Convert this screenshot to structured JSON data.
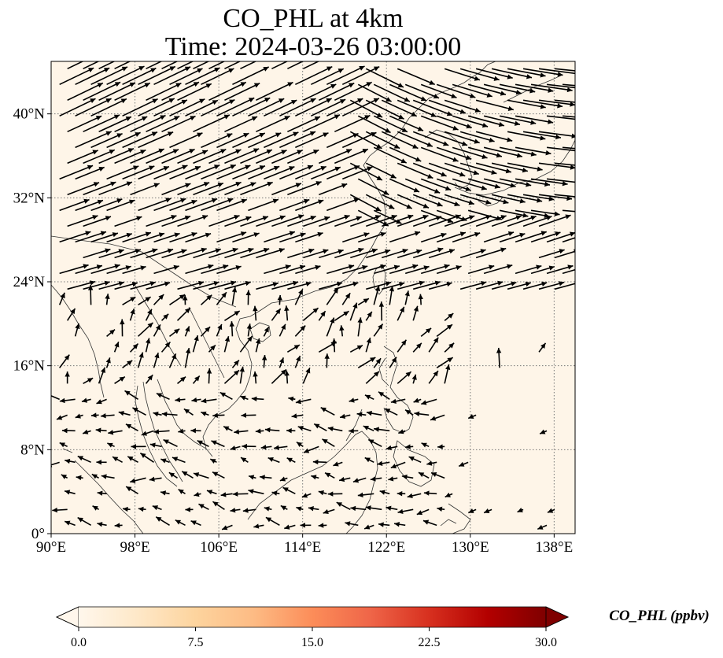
{
  "title_line1": "CO_PHL at 4km",
  "title_line2": "Time: 2024-03-26 03:00:00",
  "map": {
    "lon_range": [
      90,
      140
    ],
    "lat_range": [
      0,
      45
    ],
    "lon_ticks": [
      90,
      98,
      106,
      114,
      122,
      130,
      138
    ],
    "lon_tick_labels": [
      "90°E",
      "98°E",
      "106°E",
      "114°E",
      "122°E",
      "130°E",
      "138°E"
    ],
    "lat_ticks": [
      0,
      8,
      16,
      24,
      32,
      40
    ],
    "lat_tick_labels": [
      "0°",
      "8°N",
      "16°N",
      "24°N",
      "32°N",
      "40°N"
    ],
    "gridlines": true,
    "field_color": "#fef5e8",
    "coastline_color": "#333333"
  },
  "colorbar": {
    "label": "CO_PHL (ppbv)",
    "min": 0.0,
    "max": 30.0,
    "ticks": [
      0.0,
      7.5,
      15.0,
      22.5,
      30.0
    ],
    "tick_labels": [
      "0.0",
      "7.5",
      "15.0",
      "22.5",
      "30.0"
    ],
    "colormap": "OrRd",
    "colormap_stops": [
      "#fff7ec",
      "#fee8c8",
      "#fdd49e",
      "#fdbb84",
      "#fc8d59",
      "#ef6548",
      "#d7301f",
      "#b30000",
      "#7f0000"
    ],
    "extend": "both"
  }
}
